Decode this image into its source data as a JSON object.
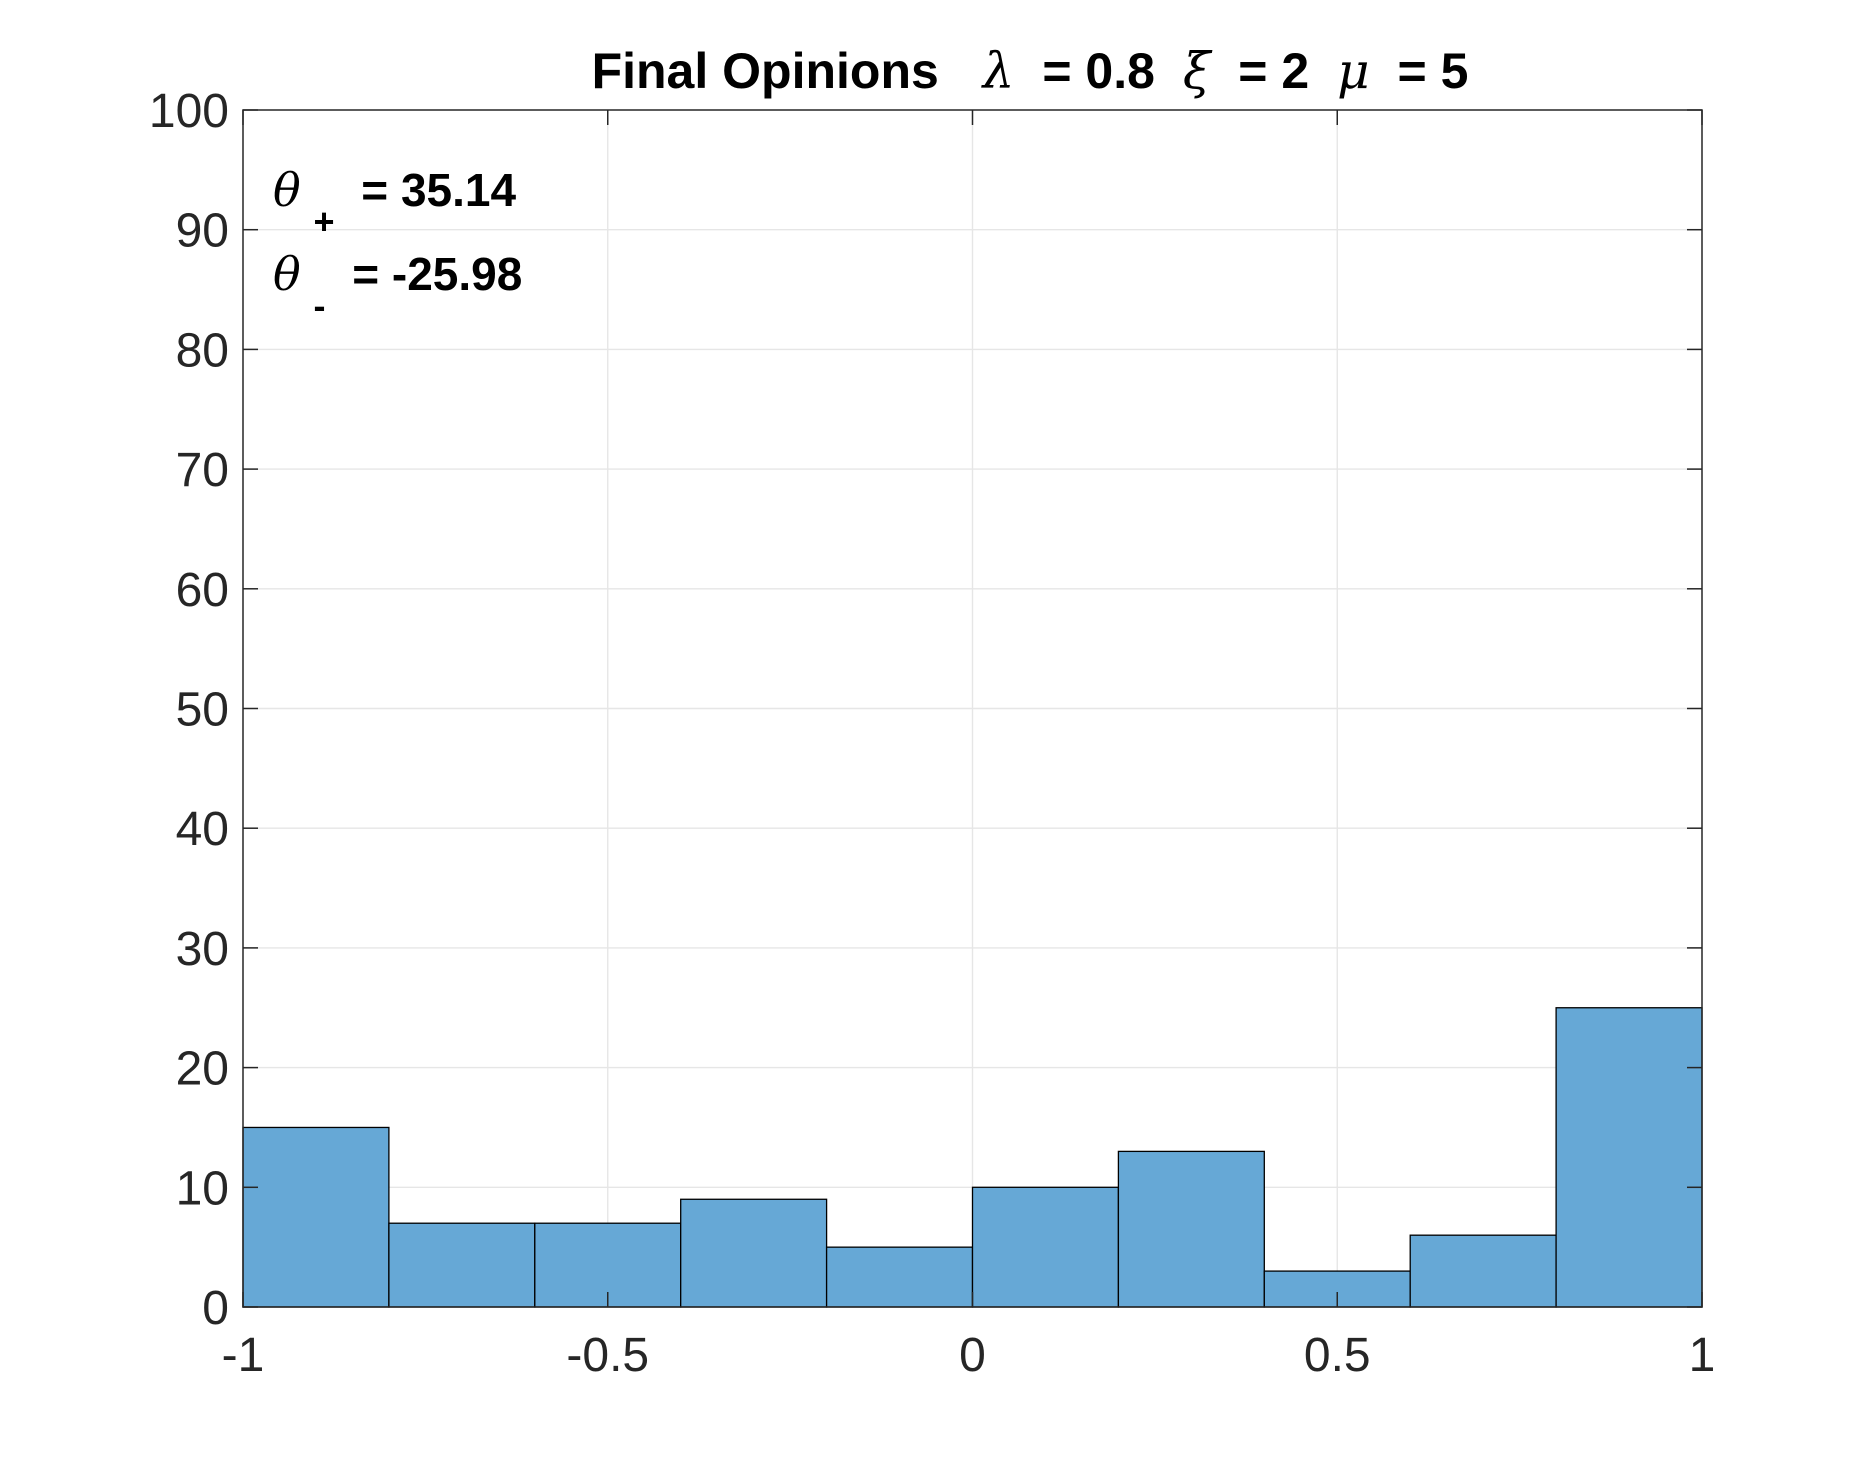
{
  "chart_data": {
    "type": "bar",
    "subtype": "histogram",
    "title": {
      "text": "Final Opinions",
      "lambda_symbol": "λ",
      "lambda_value": "= 0.8",
      "xi_symbol": "ξ",
      "xi_value": "= 2",
      "mu_symbol": "μ",
      "mu_value": "= 5"
    },
    "xlabel": "",
    "ylabel": "",
    "bin_edges": [
      -1,
      -0.8,
      -0.6,
      -0.4,
      -0.2,
      0,
      0.2,
      0.4,
      0.6,
      0.8,
      1
    ],
    "values": [
      15,
      7,
      7,
      9,
      5,
      10,
      13,
      3,
      6,
      25
    ],
    "xlim": [
      -1,
      1
    ],
    "ylim": [
      0,
      100
    ],
    "x_ticks": [
      -1,
      -0.5,
      0,
      0.5,
      1
    ],
    "x_tick_labels": [
      "-1",
      "-0.5",
      "0",
      "0.5",
      "1"
    ],
    "y_ticks": [
      0,
      10,
      20,
      30,
      40,
      50,
      60,
      70,
      80,
      90,
      100
    ],
    "y_tick_labels": [
      "0",
      "10",
      "20",
      "30",
      "40",
      "50",
      "60",
      "70",
      "80",
      "90",
      "100"
    ],
    "grid": true,
    "bar_color": "#66A8D6",
    "bar_edge_color": "#000000",
    "annotations": [
      {
        "symbol": "θ",
        "subscript": "+",
        "text": "= 35.14"
      },
      {
        "symbol": "θ",
        "subscript": "-",
        "text": "= -25.98"
      }
    ]
  }
}
